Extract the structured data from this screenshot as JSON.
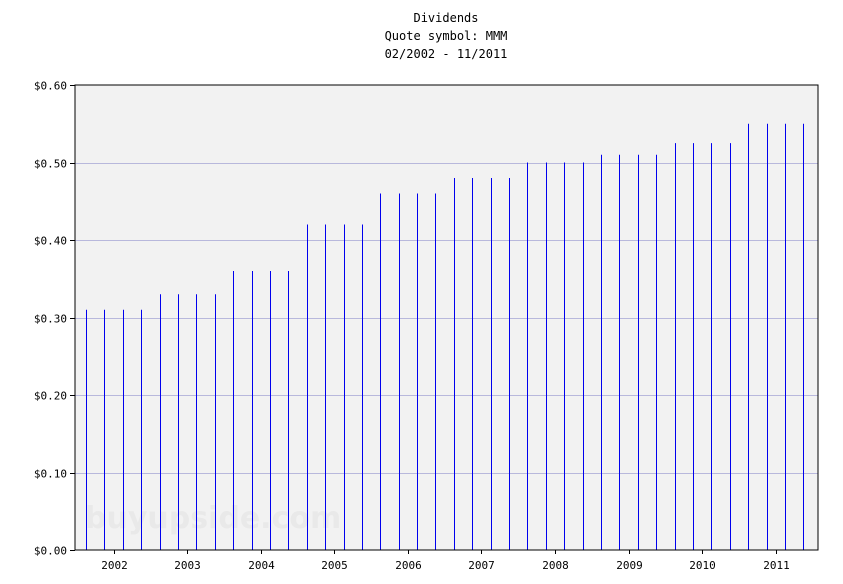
{
  "chart_data": {
    "type": "bar",
    "title": "Dividends",
    "subtitle": "Quote symbol: MMM",
    "period": "02/2002 - 11/2011",
    "xlabel": "",
    "ylabel": "",
    "ylim": [
      0,
      0.6
    ],
    "yticks": [
      "$0.00",
      "$0.10",
      "$0.20",
      "$0.30",
      "$0.40",
      "$0.50",
      "$0.60"
    ],
    "ytick_values": [
      0,
      0.1,
      0.2,
      0.3,
      0.4,
      0.5,
      0.6
    ],
    "xticks": [
      "2002",
      "2003",
      "2004",
      "2005",
      "2006",
      "2007",
      "2008",
      "2009",
      "2010",
      "2011"
    ],
    "xtick_values": [
      2002.375,
      2003.375,
      2004.375,
      2005.375,
      2006.375,
      2007.375,
      2008.375,
      2009.375,
      2010.375,
      2011.375
    ],
    "xlim": [
      2001.85,
      2011.95
    ],
    "grid": true,
    "watermark": "buyupside.com",
    "colors": {
      "bar": "#0000ee",
      "plot_bg": "#f2f2f2",
      "grid": "#b8b8dc",
      "frame": "#000000"
    },
    "dates": [
      "02/2002",
      "05/2002",
      "08/2002",
      "11/2002",
      "02/2003",
      "05/2003",
      "08/2003",
      "11/2003",
      "02/2004",
      "05/2004",
      "08/2004",
      "11/2004",
      "02/2005",
      "05/2005",
      "08/2005",
      "11/2005",
      "02/2006",
      "05/2006",
      "08/2006",
      "11/2006",
      "02/2007",
      "05/2007",
      "08/2007",
      "11/2007",
      "02/2008",
      "05/2008",
      "08/2008",
      "11/2008",
      "02/2009",
      "05/2009",
      "08/2009",
      "11/2009",
      "02/2010",
      "05/2010",
      "08/2010",
      "11/2010",
      "02/2011",
      "05/2011",
      "08/2011",
      "11/2011"
    ],
    "x": [
      2002.0,
      2002.25,
      2002.5,
      2002.75,
      2003.0,
      2003.25,
      2003.5,
      2003.75,
      2004.0,
      2004.25,
      2004.5,
      2004.75,
      2005.0,
      2005.25,
      2005.5,
      2005.75,
      2006.0,
      2006.25,
      2006.5,
      2006.75,
      2007.0,
      2007.25,
      2007.5,
      2007.75,
      2008.0,
      2008.25,
      2008.5,
      2008.75,
      2009.0,
      2009.25,
      2009.5,
      2009.75,
      2010.0,
      2010.25,
      2010.5,
      2010.75,
      2011.0,
      2011.25,
      2011.5,
      2011.75
    ],
    "values": [
      0.31,
      0.31,
      0.31,
      0.31,
      0.33,
      0.33,
      0.33,
      0.33,
      0.36,
      0.36,
      0.36,
      0.36,
      0.42,
      0.42,
      0.42,
      0.42,
      0.46,
      0.46,
      0.46,
      0.46,
      0.48,
      0.48,
      0.48,
      0.48,
      0.5,
      0.5,
      0.5,
      0.5,
      0.51,
      0.51,
      0.51,
      0.51,
      0.525,
      0.525,
      0.525,
      0.525,
      0.55,
      0.55,
      0.55,
      0.55
    ]
  }
}
